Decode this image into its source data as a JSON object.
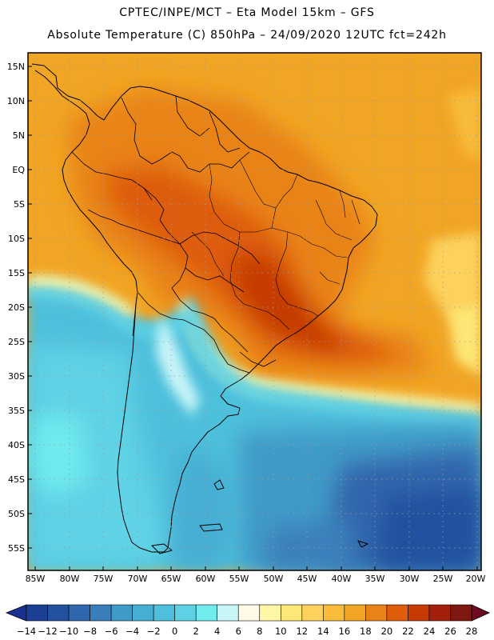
{
  "title_line1": "CPTEC/INPE/MCT –  Eta Model 15km – GFS",
  "title_line2": "Absolute Temperature (C) 850hPa – 24/09/2020 12UTC fct=242h",
  "lat_labels": [
    "15N",
    "10N",
    "5N",
    "EQ",
    "5S",
    "10S",
    "15S",
    "20S",
    "25S",
    "30S",
    "35S",
    "40S",
    "45S",
    "50S",
    "55S"
  ],
  "lon_labels": [
    "85W",
    "80W",
    "75W",
    "70W",
    "65W",
    "60W",
    "55W",
    "50W",
    "45W",
    "40W",
    "35W",
    "30W",
    "25W",
    "20W"
  ],
  "colorbar": {
    "labels": [
      "−14",
      "−12",
      "−10",
      "−8",
      "−6",
      "−4",
      "−2",
      "0",
      "2",
      "4",
      "6",
      "8",
      "10",
      "12",
      "14",
      "16",
      "18",
      "20",
      "22",
      "24",
      "26",
      "28"
    ],
    "colors": [
      "#1a3f93",
      "#24519f",
      "#3066ac",
      "#3a7fbb",
      "#3f9ac8",
      "#46aed3",
      "#4ec0dc",
      "#5ed2e5",
      "#70ebee",
      "#c8f5f7",
      "#fffbe6",
      "#fff7a6",
      "#fde776",
      "#fcd15c",
      "#f8bb3a",
      "#f1a524",
      "#e98319",
      "#de5c0a",
      "#c53a05",
      "#a3200c",
      "#7e1810"
    ],
    "under_color": "#1a3090",
    "over_color": "#6e0a22"
  }
}
